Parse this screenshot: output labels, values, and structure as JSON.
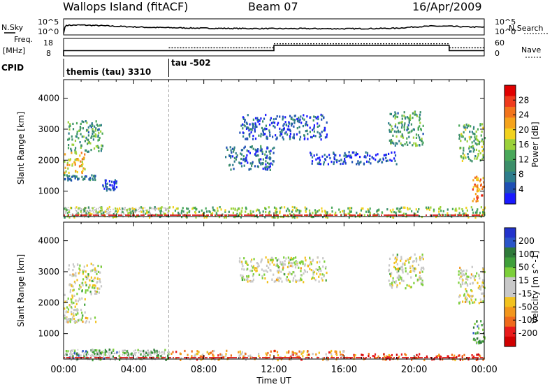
{
  "header": {
    "station": "Wallops Island (fitACF)",
    "beam": "Beam 07",
    "date": "16/Apr/2009"
  },
  "panel_labels": {
    "nsky": "N.Sky",
    "nsearch": "N.Search",
    "freq_line1": "Freq.",
    "freq_line2": "[MHz]",
    "nave": "Nave",
    "cpid": "CPID",
    "cpid_segment1": "themis (tau) 3310",
    "cpid_segment2": "tau -502"
  },
  "colors": {
    "power_scale": [
      "#1a1aff",
      "#1e4fb4",
      "#2e7d8c",
      "#3c8f6a",
      "#49a85a",
      "#9bd13a",
      "#f2d21e",
      "#f5a31c",
      "#f2741c",
      "#ef3a1c",
      "#e00000"
    ],
    "velocity_scale": [
      "#2233cc",
      "#2a55c8",
      "#2f7a3a",
      "#3f9f3a",
      "#7ccf3a",
      "#c8c8c8",
      "#c8c8c8",
      "#f2c21e",
      "#f2961c",
      "#ef6a1c",
      "#e81c1c",
      "#d00000"
    ],
    "ground_scatter": "#9a9a9a"
  },
  "chart_data": [
    {
      "type": "line",
      "title": "N.Sky / N.Search",
      "ylabel_left": "N.Sky",
      "ylabel_right": "N.Search",
      "left_ticks": [
        "10^5",
        "10^0"
      ],
      "right_ticks": [
        "10^5",
        "10^0"
      ],
      "x_hours": [
        0,
        0.1,
        1,
        2,
        3,
        4,
        5,
        6,
        8,
        10,
        12,
        14,
        16,
        18,
        19,
        20,
        21,
        22,
        23,
        24
      ],
      "series": [
        {
          "name": "N.Sky",
          "values": [
            0.0,
            0.62,
            0.64,
            0.6,
            0.55,
            0.5,
            0.46,
            0.44,
            0.4,
            0.38,
            0.37,
            0.37,
            0.36,
            0.38,
            0.4,
            0.5,
            0.56,
            0.55,
            0.5,
            0.48
          ]
        }
      ],
      "ylim": [
        0,
        1
      ]
    },
    {
      "type": "line",
      "title": "Freq. / Nave",
      "ylabel_left": "Freq. [MHz]",
      "ylabel_right": "Nave",
      "left_ticks": [
        18,
        8
      ],
      "right_ticks": [
        60,
        0
      ],
      "segments_freq": [
        {
          "x0": 0,
          "x1": 0.2,
          "value": 8
        },
        {
          "x0": 0.2,
          "x1": 6.0,
          "value": 10.2
        },
        {
          "x0": 6.0,
          "x1": 24,
          "value": 10.2
        }
      ],
      "segments_nave": [
        {
          "x0": 6.0,
          "x1": 12.0,
          "value": 30
        },
        {
          "x0": 12.0,
          "x1": 22.0,
          "value": 45
        },
        {
          "x0": 22.0,
          "x1": 24,
          "value": 30
        }
      ],
      "segments_freq_solid_upper": [
        {
          "x0": 12.0,
          "x1": 22.0,
          "value": 14.4
        }
      ]
    },
    {
      "type": "heatmap",
      "title": "Power",
      "ylabel": "Slant Range [km]",
      "yticks": [
        1000,
        2000,
        3000,
        4000
      ],
      "ylim": [
        180,
        4600
      ],
      "colorbar_label": "Power [dB]",
      "colorbar_ticks": [
        4,
        8,
        12,
        16,
        20,
        24,
        28
      ],
      "clusters": [
        {
          "x": [
            0.0,
            1.2
          ],
          "y": [
            1600,
            2300
          ],
          "level": 0.65
        },
        {
          "x": [
            0.2,
            2.2
          ],
          "y": [
            2300,
            3300
          ],
          "level": 0.35
        },
        {
          "x": [
            0.0,
            1.8
          ],
          "y": [
            1380,
            1560
          ],
          "level": 0.25
        },
        {
          "x": [
            2.2,
            3.0
          ],
          "y": [
            1050,
            1400
          ],
          "level": 0.1
        },
        {
          "x": [
            9.2,
            12.0
          ],
          "y": [
            1700,
            2500
          ],
          "level": 0.2
        },
        {
          "x": [
            10.0,
            15.0
          ],
          "y": [
            2700,
            3500
          ],
          "level": 0.15
        },
        {
          "x": [
            14.0,
            19.0
          ],
          "y": [
            1900,
            2300
          ],
          "level": 0.1
        },
        {
          "x": [
            18.5,
            20.5
          ],
          "y": [
            2500,
            3600
          ],
          "level": 0.35
        },
        {
          "x": [
            22.5,
            24.0
          ],
          "y": [
            2000,
            3200
          ],
          "level": 0.4
        },
        {
          "x": [
            23.3,
            24.0
          ],
          "y": [
            700,
            1500
          ],
          "level": 0.75
        },
        {
          "x": [
            0.0,
            24.0
          ],
          "y": [
            180,
            520
          ],
          "level": 0.45
        }
      ]
    },
    {
      "type": "heatmap",
      "title": "Velocity",
      "ylabel": "Slant Range [km]",
      "yticks": [
        1000,
        2000,
        3000,
        4000
      ],
      "ylim": [
        180,
        4600
      ],
      "colorbar_label": "Velocity [m s^-1]",
      "colorbar_ticks": [
        200,
        100,
        50,
        15,
        -15,
        -50,
        -100,
        -200
      ],
      "x_ticks": [
        "00:00",
        "04:00",
        "08:00",
        "12:00",
        "16:00",
        "20:00",
        "00:00"
      ],
      "xlabel": "Time UT",
      "clusters": [
        {
          "x": [
            0.0,
            1.2
          ],
          "y": [
            1600,
            2300
          ],
          "level": 0.5
        },
        {
          "x": [
            0.2,
            2.2
          ],
          "y": [
            2300,
            3300
          ],
          "level": 0.5
        },
        {
          "x": [
            0.0,
            1.8
          ],
          "y": [
            1380,
            1560
          ],
          "level": 0.5
        },
        {
          "x": [
            10.0,
            15.0
          ],
          "y": [
            2700,
            3500
          ],
          "level": 0.5
        },
        {
          "x": [
            18.5,
            20.5
          ],
          "y": [
            2500,
            3600
          ],
          "level": 0.5
        },
        {
          "x": [
            22.5,
            24.0
          ],
          "y": [
            2000,
            3200
          ],
          "level": 0.5
        },
        {
          "x": [
            23.3,
            24.0
          ],
          "y": [
            700,
            1500
          ],
          "level": 0.3
        },
        {
          "x": [
            0.0,
            6.0
          ],
          "y": [
            180,
            520
          ],
          "level": 0.3
        },
        {
          "x": [
            6.0,
            16.0
          ],
          "y": [
            180,
            480
          ],
          "level": 0.68
        },
        {
          "x": [
            16.0,
            24.0
          ],
          "y": [
            180,
            380
          ],
          "level": 0.82
        }
      ]
    }
  ]
}
